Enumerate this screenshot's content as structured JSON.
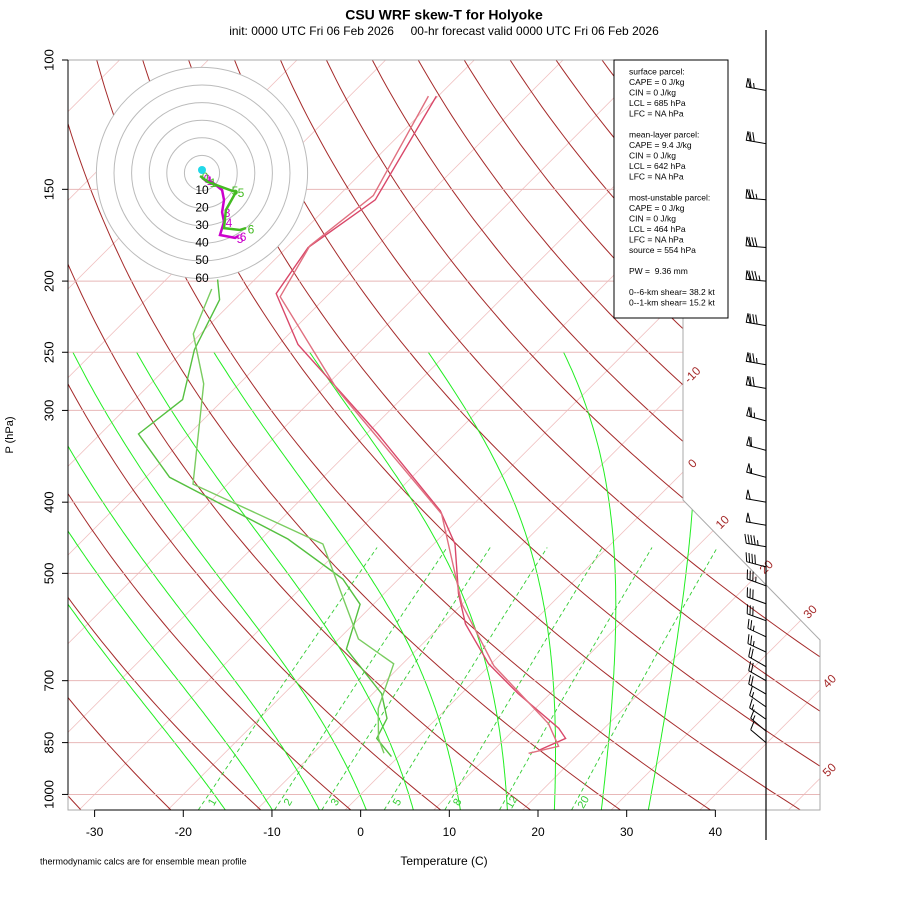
{
  "chart_data": {
    "type": "skewt",
    "title": "CSU WRF skew-T for Holyoke",
    "subtitle": "init: 0000 UTC Fri 06 Feb 2026     00-hr forecast valid 0000 UTC Fri 06 Feb 2026",
    "xlabel": "Temperature (C)",
    "ylabel": "P (hPa)",
    "footnote": "thermodynamic calcs are for ensemble mean profile",
    "xlim": [
      -33,
      51.8
    ],
    "xticks": [
      -30,
      -20,
      -10,
      0,
      10,
      20,
      30,
      40
    ],
    "ylim": [
      1050,
      100
    ],
    "yticks": [
      100,
      150,
      200,
      250,
      300,
      400,
      500,
      700,
      850,
      1000
    ],
    "ylog": true,
    "isotherm_labels": [
      -10,
      0,
      10,
      20,
      30,
      40,
      50
    ],
    "mixing_ratio_labels": [
      1,
      2,
      3,
      5,
      8,
      12,
      20
    ],
    "series": [
      {
        "color": "#d9486a",
        "pressure": [
          112,
          155,
          180,
          208,
          244,
          276,
          323,
          411,
          456,
          533,
          586,
          664,
          729,
          813,
          839,
          871
        ],
        "values": [
          -70.2,
          -65.4,
          -67.6,
          -66,
          -57.8,
          -49.4,
          -38.7,
          -23,
          -17.6,
          -11.6,
          -7.4,
          -0.3,
          6.4,
          14.9,
          16.8,
          15.1
        ]
      },
      {
        "color": "#e07080",
        "pressure": [
          112,
          153,
          179,
          210,
          281,
          415,
          550,
          668,
          801,
          860,
          879
        ],
        "values": [
          -71.1,
          -66.1,
          -67.6,
          -65.2,
          -48.3,
          -22.5,
          -10.1,
          0.5,
          13.2,
          16.9,
          14.3
        ]
      },
      {
        "color": "#55c040",
        "pressure": [
          199,
          212,
          248,
          290,
          323,
          370,
          449,
          509,
          551,
          634,
          729,
          788,
          839,
          888
        ],
        "values": [
          -74.2,
          -71.7,
          -68.9,
          -64.6,
          -65.7,
          -57.3,
          -37,
          -26.3,
          -21.5,
          -18,
          -9,
          -5.6,
          -4.5,
          -0.8
        ]
      },
      {
        "color": "#7acc60",
        "pressure": [
          205,
          236,
          276,
          378,
          456,
          614,
          664,
          764,
          839,
          879
        ],
        "values": [
          -73.8,
          -70.8,
          -64,
          -53.9,
          -32.5,
          -17.8,
          -11,
          -7.7,
          -4.3,
          -2
        ]
      }
    ],
    "winds": {
      "pressure": [
        110,
        130,
        155,
        180,
        200,
        230,
        260,
        280,
        310,
        340,
        370,
        400,
        430,
        460,
        490,
        520,
        550,
        580,
        610,
        640,
        670,
        700,
        730,
        760,
        790,
        820,
        850
      ],
      "speed": [
        65,
        70,
        75,
        80,
        85,
        80,
        75,
        70,
        65,
        60,
        55,
        50,
        50,
        45,
        40,
        35,
        30,
        30,
        25,
        25,
        20,
        20,
        20,
        15,
        15,
        15,
        10
      ],
      "direction": [
        280,
        280,
        275,
        275,
        275,
        280,
        280,
        280,
        285,
        285,
        285,
        280,
        280,
        280,
        285,
        290,
        290,
        290,
        295,
        295,
        300,
        300,
        300,
        305,
        305,
        310,
        310
      ]
    },
    "annotation_groups": [
      [
        "surface parcel:",
        "CAPE = 0 J/kg",
        "CIN = 0 J/kg",
        "LCL = 685 hPa",
        "LFC = NA hPa"
      ],
      [
        "mean-layer parcel:",
        "CAPE = 9.4 J/kg",
        "CIN = 0 J/kg",
        "LCL = 642 hPa",
        "LFC = NA hPa"
      ],
      [
        "most-unstable parcel:",
        "CAPE = 0 J/kg",
        "CIN = 0 J/kg",
        "LCL = 464 hPa",
        "LFC = NA hPa",
        "source = 554 hPa"
      ],
      [
        "PW =  9.36 mm"
      ],
      [
        "0--6-km shear= 38.2 kt",
        "0--1-km shear= 15.2 kt"
      ]
    ],
    "hodograph": {
      "rings": [
        10,
        20,
        30,
        40,
        50,
        60
      ],
      "center_point": {
        "u": 0,
        "v": 1.7,
        "color": "#22d8e8"
      },
      "traces": [
        {
          "color": "#cc00cc",
          "u": [
            0,
            1.7,
            5.7,
            11.4,
            12.5,
            11.4,
            12.5,
            10.2,
            18.8,
            20.5
          ],
          "v": [
            -2.8,
            -4,
            -5.1,
            -9.7,
            -15.3,
            -22.2,
            -27.8,
            -35.2,
            -36.9,
            -35.8
          ],
          "labels": [
            "0",
            "1",
            null,
            null,
            null,
            "3",
            "4",
            null,
            "5",
            "6"
          ]
        },
        {
          "color": "#44bb22",
          "u": [
            -1.1,
            3.4,
            15.9,
            19.3,
            13.6,
            12.5,
            21.6,
            25
          ],
          "v": [
            -1.7,
            -5.1,
            -9.7,
            -10.8,
            -21,
            -31.3,
            -32.4,
            -31.3
          ],
          "labels": [
            "0",
            "1",
            "5",
            "5",
            null,
            null,
            null,
            "6"
          ]
        }
      ]
    }
  }
}
